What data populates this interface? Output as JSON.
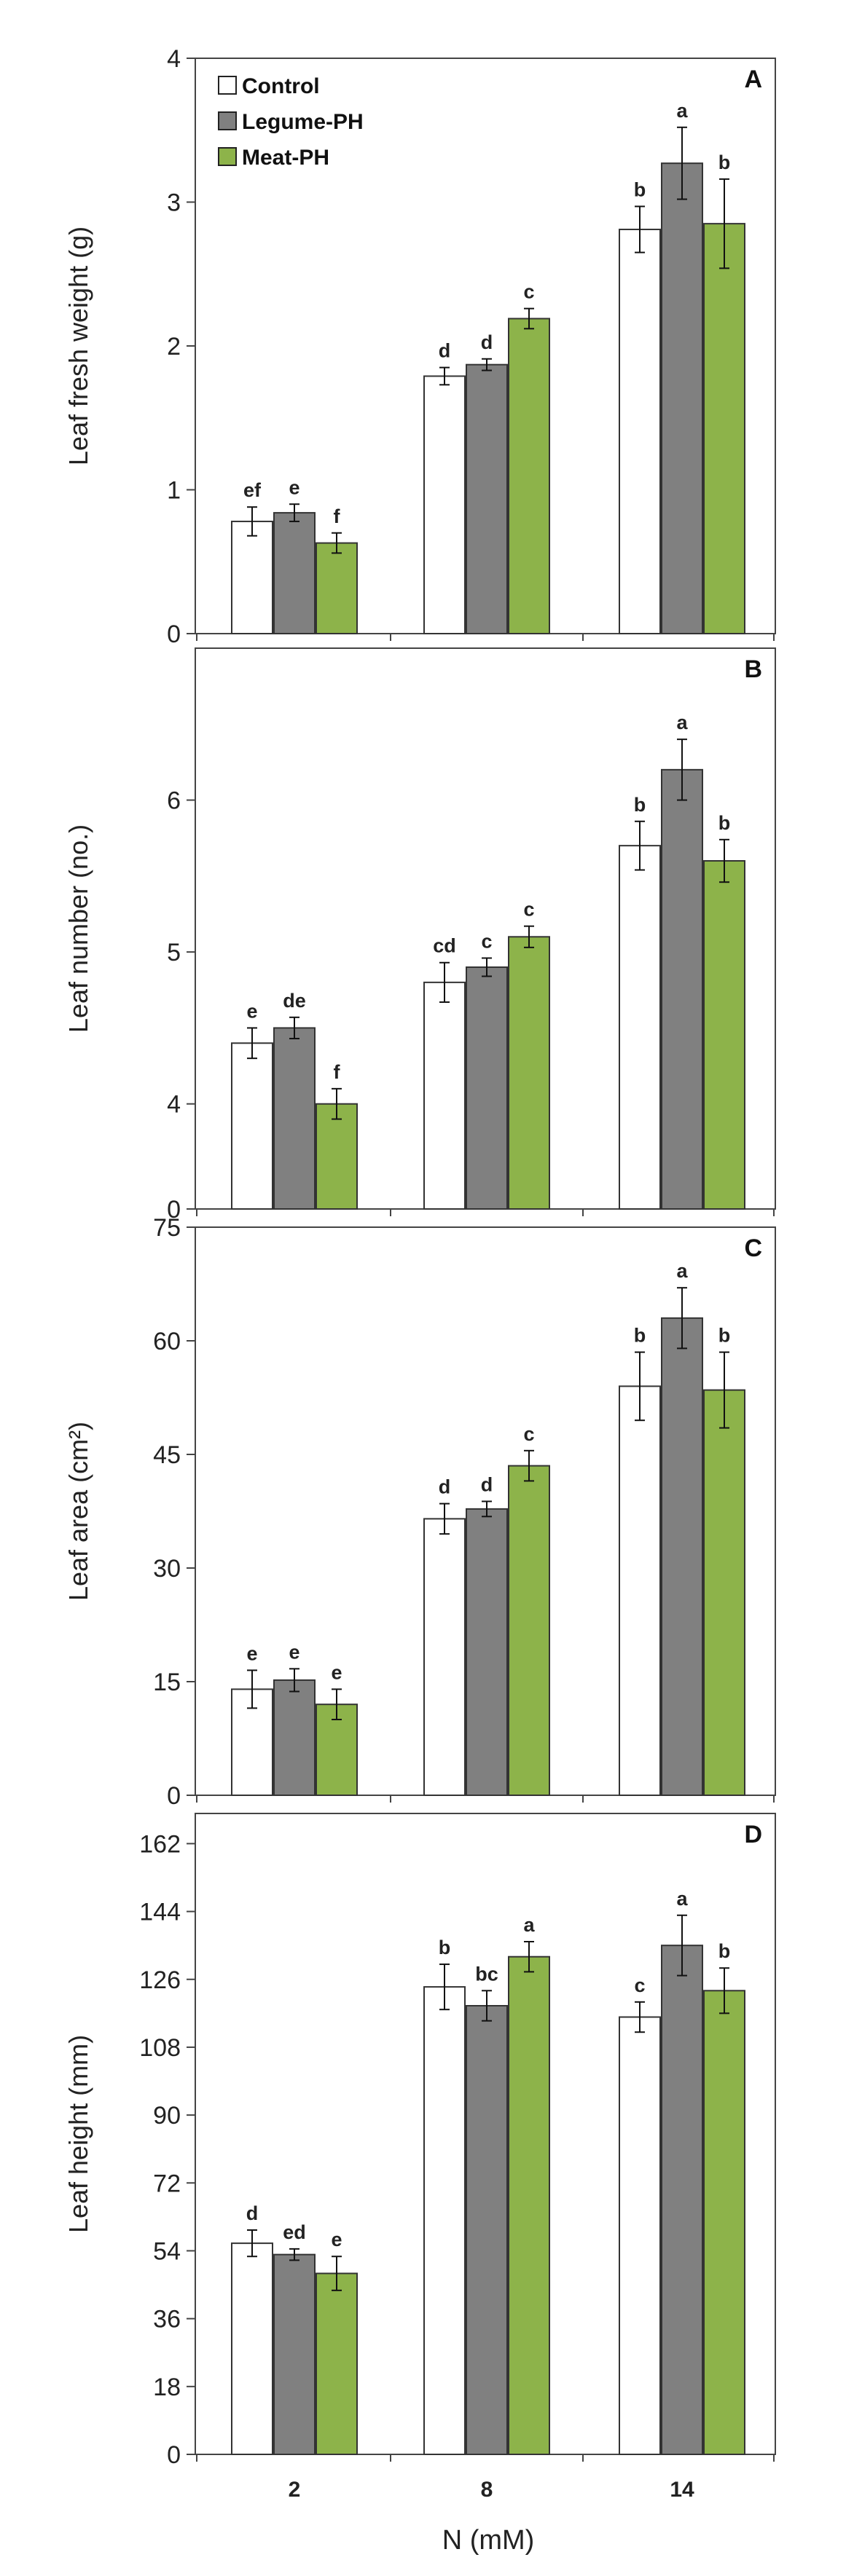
{
  "xlabel": "N (mM)",
  "categories": [
    "2",
    "8",
    "14"
  ],
  "legend": [
    {
      "name": "Control",
      "color": "#ffffff"
    },
    {
      "name": "Legume-PH",
      "color": "#808080"
    },
    {
      "name": "Meat-PH",
      "color": "#8db34a"
    }
  ],
  "chart_data": [
    {
      "type": "bar",
      "panel": "A",
      "ylabel": "Leaf fresh weight (g)",
      "ylim": [
        0,
        4
      ],
      "yticks": [
        0,
        1,
        2,
        3,
        4
      ],
      "categories": [
        "2",
        "8",
        "14"
      ],
      "series": [
        {
          "name": "Control",
          "values": [
            0.78,
            1.79,
            2.81
          ],
          "errors": [
            0.1,
            0.06,
            0.16
          ],
          "letters": [
            "ef",
            "d",
            "b"
          ]
        },
        {
          "name": "Legume-PH",
          "values": [
            0.84,
            1.87,
            3.27
          ],
          "errors": [
            0.06,
            0.04,
            0.25
          ],
          "letters": [
            "e",
            "d",
            "a"
          ]
        },
        {
          "name": "Meat-PH",
          "values": [
            0.63,
            2.19,
            2.85
          ],
          "errors": [
            0.07,
            0.07,
            0.31
          ],
          "letters": [
            "f",
            "c",
            "b"
          ]
        }
      ]
    },
    {
      "type": "bar",
      "panel": "B",
      "ylabel": "Leaf number (no.)",
      "ylim": [
        0,
        7
      ],
      "ybreak": true,
      "yticks": [
        0,
        4,
        5,
        6
      ],
      "categories": [
        "2",
        "8",
        "14"
      ],
      "series": [
        {
          "name": "Control",
          "values": [
            4.4,
            4.8,
            5.7
          ],
          "errors": [
            0.1,
            0.13,
            0.16
          ],
          "letters": [
            "e",
            "cd",
            "b"
          ]
        },
        {
          "name": "Legume-PH",
          "values": [
            4.5,
            4.9,
            6.2
          ],
          "errors": [
            0.07,
            0.06,
            0.2
          ],
          "letters": [
            "de",
            "c",
            "a"
          ]
        },
        {
          "name": "Meat-PH",
          "values": [
            4.0,
            5.1,
            5.6
          ],
          "errors": [
            0.1,
            0.07,
            0.14
          ],
          "letters": [
            "f",
            "c",
            "b"
          ]
        }
      ]
    },
    {
      "type": "bar",
      "panel": "C",
      "ylabel": "Leaf area (cm²)",
      "ylim": [
        0,
        75
      ],
      "yticks": [
        0,
        15,
        30,
        45,
        60,
        75
      ],
      "categories": [
        "2",
        "8",
        "14"
      ],
      "series": [
        {
          "name": "Control",
          "values": [
            14,
            36.5,
            54
          ],
          "errors": [
            2.5,
            2,
            4.5
          ],
          "letters": [
            "e",
            "d",
            "b"
          ]
        },
        {
          "name": "Legume-PH",
          "values": [
            15.2,
            37.8,
            63
          ],
          "errors": [
            1.5,
            1,
            4
          ],
          "letters": [
            "e",
            "d",
            "a"
          ]
        },
        {
          "name": "Meat-PH",
          "values": [
            12,
            43.5,
            53.5
          ],
          "errors": [
            2,
            2,
            5
          ],
          "letters": [
            "e",
            "c",
            "b"
          ]
        }
      ]
    },
    {
      "type": "bar",
      "panel": "D",
      "ylabel": "Leaf height (mm)",
      "ylim": [
        0,
        170
      ],
      "yticks": [
        0,
        18,
        36,
        54,
        72,
        90,
        108,
        126,
        144,
        162
      ],
      "categories": [
        "2",
        "8",
        "14"
      ],
      "series": [
        {
          "name": "Control",
          "values": [
            56,
            124,
            116
          ],
          "errors": [
            3.5,
            6,
            4
          ],
          "letters": [
            "d",
            "b",
            "c"
          ]
        },
        {
          "name": "Legume-PH",
          "values": [
            53,
            119,
            135
          ],
          "errors": [
            1.5,
            4,
            8
          ],
          "letters": [
            "ed",
            "bc",
            "a"
          ]
        },
        {
          "name": "Meat-PH",
          "values": [
            48,
            132,
            123
          ],
          "errors": [
            4.5,
            4,
            6
          ],
          "letters": [
            "e",
            "a",
            "b"
          ]
        }
      ]
    }
  ]
}
